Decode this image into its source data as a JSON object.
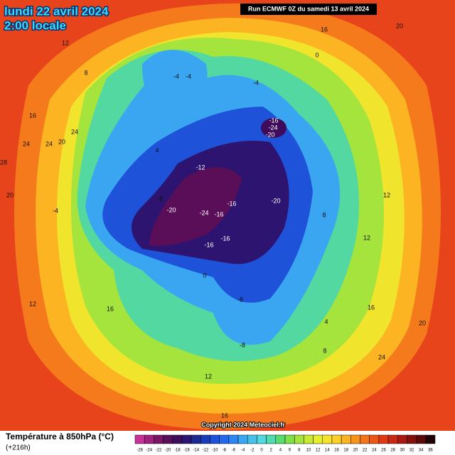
{
  "header": {
    "date": "lundi 22 avril 2024",
    "time": "2:00 locale",
    "run": "Run ECMWF 0Z du samedi 13 avril 2024"
  },
  "map": {
    "copyright": "Copyright 2024 Meteociel.fr",
    "contour_labels": [
      -4,
      -4,
      -4,
      -16,
      -24,
      -20,
      -12,
      -8,
      -20,
      -24,
      -16,
      -16,
      -20,
      -16,
      -16,
      -8,
      -8,
      -4,
      0,
      0,
      4,
      4,
      8,
      8,
      8,
      12,
      12,
      12,
      12,
      12,
      16,
      16,
      16,
      16,
      16,
      20,
      20,
      20,
      20,
      24,
      24,
      24,
      24,
      28
    ]
  },
  "legend": {
    "title": "Température à 850hPa (°C)",
    "subtitle": "(+216h)",
    "ticks": [
      -26,
      -24,
      -22,
      -20,
      -18,
      -16,
      -14,
      -12,
      -10,
      -8,
      -6,
      -4,
      -2,
      0,
      2,
      4,
      6,
      8,
      10,
      12,
      14,
      16,
      18,
      20,
      22,
      24,
      26,
      28,
      30,
      32,
      34,
      36
    ],
    "colors": [
      "#c8309a",
      "#a0207e",
      "#7a1466",
      "#5a0e58",
      "#3e0c5a",
      "#2c1470",
      "#1e2a90",
      "#1a3cb8",
      "#1e52d8",
      "#2468ee",
      "#2c86f4",
      "#3aa6f2",
      "#46c2ea",
      "#52d8e0",
      "#4edcb0",
      "#58dc70",
      "#7ee04a",
      "#a4e43c",
      "#c8ea30",
      "#e6ee2c",
      "#f6e42c",
      "#fcd02a",
      "#fcb422",
      "#f8941c",
      "#f47418",
      "#ee5416",
      "#e03a14",
      "#c82812",
      "#a81a10",
      "#84100c",
      "#5a0808",
      "#200404"
    ]
  }
}
